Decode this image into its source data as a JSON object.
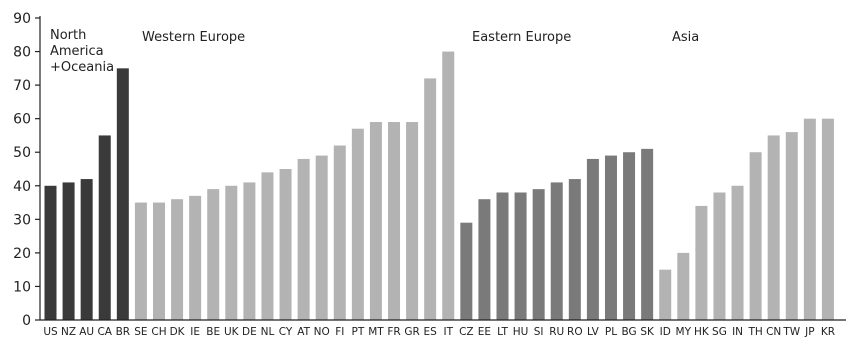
{
  "chart_data": {
    "type": "bar",
    "title": "",
    "xlabel": "",
    "ylabel": "",
    "ylim": [
      0,
      90
    ],
    "yticks": [
      0,
      10,
      20,
      30,
      40,
      50,
      60,
      70,
      80,
      90
    ],
    "grid": false,
    "groups": [
      {
        "label_lines": [
          "North",
          "America",
          "+Oceania"
        ],
        "color": "#3a3a3a",
        "categories": [
          "US",
          "NZ",
          "AU",
          "CA",
          "BR"
        ],
        "values": [
          40,
          41,
          42,
          55,
          75
        ]
      },
      {
        "label_lines": [
          "Western Europe"
        ],
        "color": "#b3b3b3",
        "categories": [
          "SE",
          "CH",
          "DK",
          "IE",
          "BE",
          "UK",
          "DE",
          "NL",
          "CY",
          "AT",
          "NO",
          "FI",
          "PT",
          "MT",
          "FR",
          "GR",
          "ES",
          "IT"
        ],
        "values": [
          35,
          35,
          36,
          37,
          39,
          40,
          41,
          44,
          45,
          48,
          49,
          52,
          57,
          59,
          59,
          59,
          72,
          80
        ]
      },
      {
        "label_lines": [
          "Eastern Europe"
        ],
        "color": "#7a7a7a",
        "categories": [
          "CZ",
          "EE",
          "LT",
          "HU",
          "SI",
          "RU",
          "RO",
          "LV",
          "PL",
          "BG",
          "SK"
        ],
        "values": [
          29,
          36,
          38,
          38,
          39,
          41,
          42,
          48,
          49,
          50,
          51
        ]
      },
      {
        "label_lines": [
          "Asia"
        ],
        "color": "#b3b3b3",
        "categories": [
          "ID",
          "MY",
          "HK",
          "SG",
          "IN",
          "TH",
          "CN",
          "TW",
          "JP",
          "KR"
        ],
        "values": [
          15,
          20,
          34,
          38,
          40,
          50,
          55,
          56,
          60,
          60
        ]
      }
    ]
  }
}
